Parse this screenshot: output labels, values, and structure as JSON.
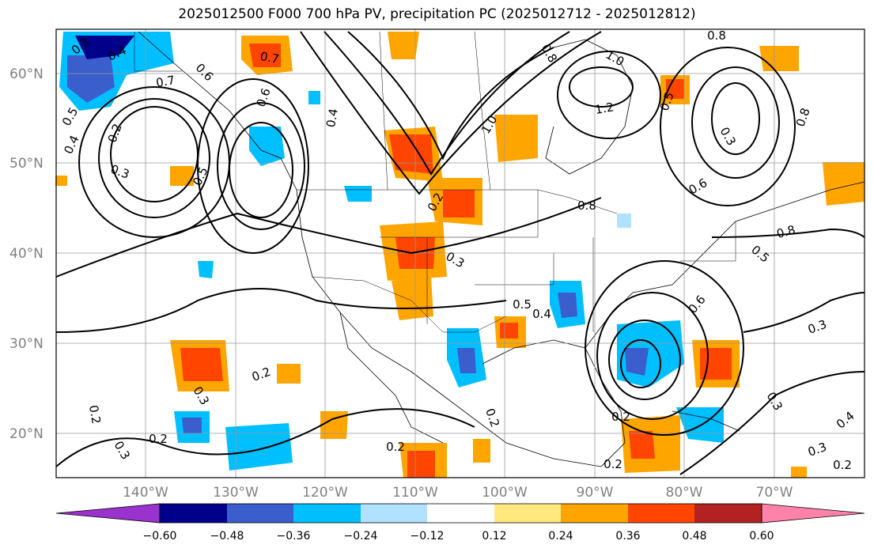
{
  "title": "2025012500 F000 700 hPa PV, precipitation PC (2025012712 - 2025012812)",
  "lat_labels": [
    "60°N",
    "50°N",
    "40°N",
    "30°N",
    "20°N"
  ],
  "lon_labels": [
    "140°W",
    "130°W",
    "120°W",
    "110°W",
    "100°W",
    "90°W",
    "80°W",
    "70°W"
  ],
  "colorbar": {
    "tick_labels": [
      "−0.60",
      "−0.48",
      "−0.36",
      "−0.24",
      "−0.12",
      "0.12",
      "0.24",
      "0.36",
      "0.48",
      "0.60"
    ],
    "colors": [
      "#9a32cd",
      "#00008b",
      "#3a5fcd",
      "#00bfff",
      "#b0e2ff",
      "#ffffff",
      "#ffe97f",
      "#ffa500",
      "#ff4500",
      "#b22222",
      "#ff82ab"
    ]
  },
  "contour_labels": [
    {
      "text": "0.3"
    },
    {
      "text": "0.4"
    },
    {
      "text": "0.6"
    },
    {
      "text": "0.7"
    },
    {
      "text": "0.5"
    },
    {
      "text": "0.4"
    },
    {
      "text": "0.2"
    },
    {
      "text": "0.3"
    },
    {
      "text": "0.5"
    },
    {
      "text": "0.6"
    },
    {
      "text": "0.4"
    },
    {
      "text": "0.7"
    },
    {
      "text": "0.8"
    },
    {
      "text": "1.0"
    },
    {
      "text": "1.2"
    },
    {
      "text": "1.0"
    },
    {
      "text": "0.8"
    },
    {
      "text": "0.5"
    },
    {
      "text": "0.8"
    },
    {
      "text": "0.3"
    },
    {
      "text": "0.8"
    },
    {
      "text": "0.6"
    },
    {
      "text": "0.8"
    },
    {
      "text": "0.5"
    },
    {
      "text": "0.2"
    },
    {
      "text": "0.3"
    },
    {
      "text": "0.5"
    },
    {
      "text": "0.4"
    },
    {
      "text": "0.6"
    },
    {
      "text": "0.3"
    },
    {
      "text": "0.2"
    },
    {
      "text": "0.3"
    },
    {
      "text": "0.2"
    },
    {
      "text": "0.2"
    },
    {
      "text": "0.3"
    },
    {
      "text": "0.2"
    },
    {
      "text": "0.2"
    },
    {
      "text": "0.2"
    },
    {
      "text": "0.2"
    },
    {
      "text": "0.3"
    },
    {
      "text": "0.4"
    },
    {
      "text": "0.3"
    },
    {
      "text": "0.2"
    }
  ]
}
